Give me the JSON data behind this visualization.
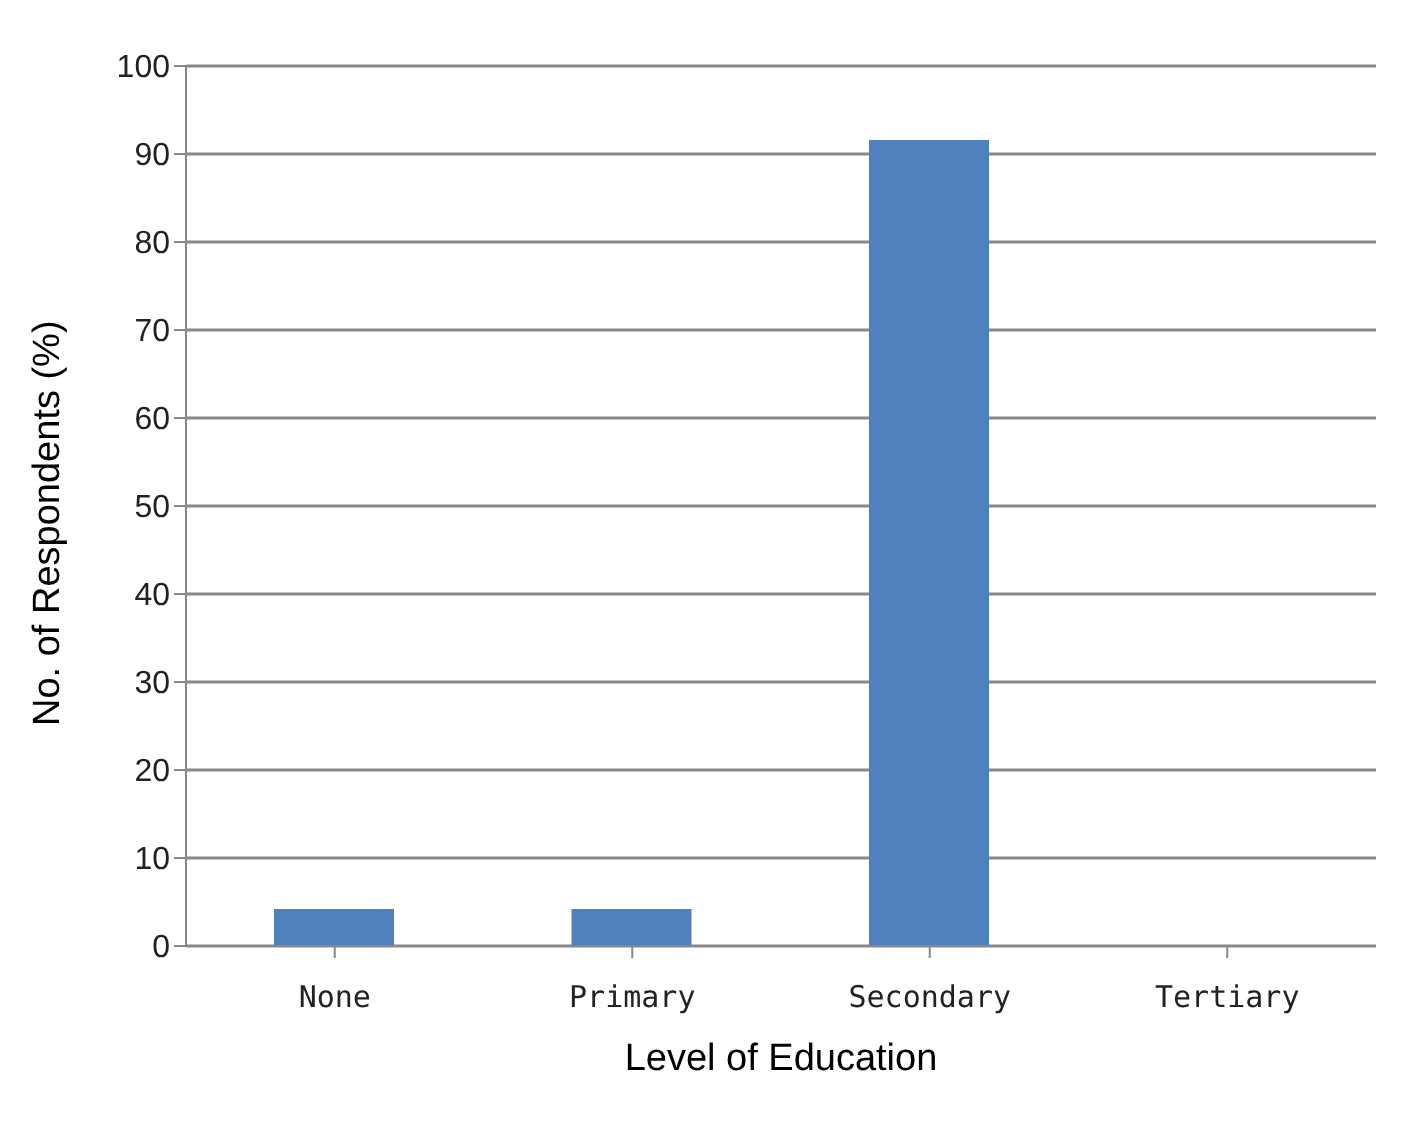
{
  "chart_data": {
    "type": "bar",
    "xlabel": "Level of Education",
    "ylabel": "No. of Respondents (%)",
    "categories": [
      "None",
      "Primary",
      "Secondary",
      "Tertiary"
    ],
    "values": [
      4.2,
      4.2,
      91.6,
      0
    ],
    "color": "#4f81bd",
    "ylim": [
      0,
      100
    ],
    "yticks": [
      0,
      10,
      20,
      30,
      40,
      50,
      60,
      70,
      80,
      90,
      100
    ],
    "grid": "y",
    "legend": false
  }
}
